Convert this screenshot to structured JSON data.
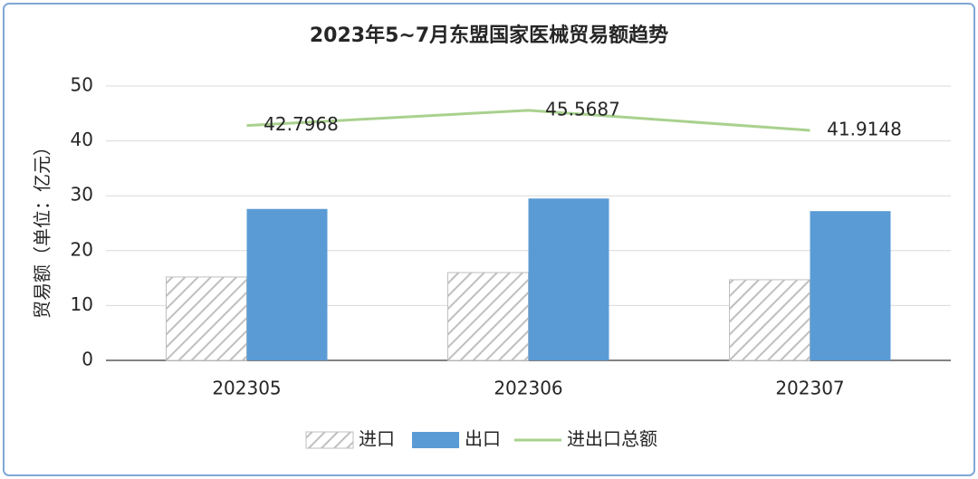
{
  "chart_data": {
    "type": "bar-line",
    "title": "2023年5~7月东盟国家医械贸易额趋势",
    "y_label": "贸易额（单位：亿元）",
    "categories": [
      "202305",
      "202306",
      "202307"
    ],
    "series": [
      {
        "name": "进口",
        "type": "bar",
        "color": "#bfbfbf",
        "pattern": "hatch",
        "values": [
          15.2,
          16.0,
          14.7
        ]
      },
      {
        "name": "出口",
        "type": "bar",
        "color": "#5b9bd5",
        "values": [
          27.6,
          29.5,
          27.2
        ]
      },
      {
        "name": "进出口总额",
        "type": "line",
        "color": "#a9d18e",
        "values": [
          42.7968,
          45.5687,
          41.9148
        ],
        "data_labels": true
      }
    ],
    "ylim": [
      0,
      50
    ],
    "yticks": [
      0,
      10,
      20,
      30,
      40,
      50
    ],
    "grid": true,
    "legend": "bottom"
  }
}
